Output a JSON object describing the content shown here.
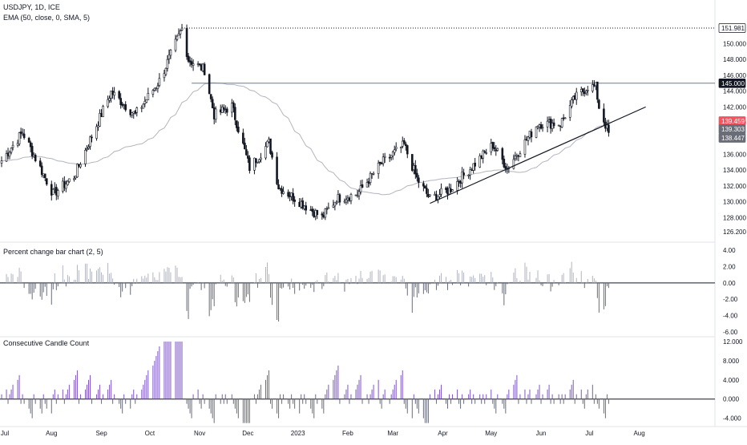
{
  "header": {
    "title": "USDJPY, 1D, ICE",
    "indicator": "EMA (50, close, 0, SMA, 5)"
  },
  "panels": {
    "pct": {
      "title": "Percent change bar chart (2, 5)"
    },
    "ccc": {
      "title": "Consecutive Candle Count"
    }
  },
  "colors": {
    "candle": "#131722",
    "ema": "#b2b5be",
    "hline": "#5b7fa5",
    "trendline": "#131722",
    "pct_up": "#b2b5be",
    "pct_down": "#6a6d78",
    "ccc_up": "#7e57c2",
    "ccc_down": "#6a6d78",
    "price_tag_red": "#f7525f",
    "price_tag_grey": "#6a6d78",
    "price_tag_navy": "#131722"
  },
  "chart_data": [
    {
      "type": "candlestick",
      "title": "USDJPY, 1D, ICE",
      "x_ticks": [
        "Jul",
        "Aug",
        "Sep",
        "Oct",
        "Nov",
        "Dec",
        "2023",
        "Feb",
        "Mar",
        "Apr",
        "May",
        "Jun",
        "Jul",
        "Aug"
      ],
      "y_ticks": [
        "126.200",
        "128.000",
        "130.000",
        "132.000",
        "134.000",
        "136.000",
        "140.000",
        "142.000",
        "144.000",
        "146.000",
        "148.000",
        "150.000"
      ],
      "ylim": [
        125.5,
        153.3
      ],
      "series": [
        {
          "name": "EMA (50, close, 0, SMA, 5)",
          "type": "line"
        }
      ],
      "key_points": [
        {
          "date": "2022-07-01",
          "close": 135.2
        },
        {
          "date": "2022-07-14",
          "close": 138.8
        },
        {
          "date": "2022-08-02",
          "close": 131.0
        },
        {
          "date": "2022-08-15",
          "close": 133.2
        },
        {
          "date": "2022-09-07",
          "close": 143.9
        },
        {
          "date": "2022-09-22",
          "close": 141.0
        },
        {
          "date": "2022-10-07",
          "close": 145.3
        },
        {
          "date": "2022-10-21",
          "close": 151.9
        },
        {
          "date": "2022-10-25",
          "close": 148.0
        },
        {
          "date": "2022-11-04",
          "close": 146.7
        },
        {
          "date": "2022-11-10",
          "close": 141.0
        },
        {
          "date": "2022-11-21",
          "close": 142.1
        },
        {
          "date": "2022-12-02",
          "close": 134.3
        },
        {
          "date": "2022-12-14",
          "close": 137.5
        },
        {
          "date": "2022-12-20",
          "close": 131.9
        },
        {
          "date": "2023-01-16",
          "close": 128.0
        },
        {
          "date": "2023-01-25",
          "close": 130.4
        },
        {
          "date": "2023-02-07",
          "close": 131.0
        },
        {
          "date": "2023-02-22",
          "close": 134.9
        },
        {
          "date": "2023-03-08",
          "close": 137.2
        },
        {
          "date": "2023-03-16",
          "close": 132.9
        },
        {
          "date": "2023-03-24",
          "close": 130.4
        },
        {
          "date": "2023-04-05",
          "close": 131.5
        },
        {
          "date": "2023-04-18",
          "close": 134.2
        },
        {
          "date": "2023-05-02",
          "close": 137.2
        },
        {
          "date": "2023-05-11",
          "close": 134.3
        },
        {
          "date": "2023-05-30",
          "close": 139.9
        },
        {
          "date": "2023-06-13",
          "close": 139.9
        },
        {
          "date": "2023-06-22",
          "close": 143.1
        },
        {
          "date": "2023-06-30",
          "close": 144.6
        },
        {
          "date": "2023-07-05",
          "close": 144.5
        },
        {
          "date": "2023-07-07",
          "close": 142.0
        },
        {
          "date": "2023-07-13",
          "close": 138.6
        }
      ],
      "horizontal_levels": [
        {
          "value": 151.981,
          "label": "151.981",
          "style": "dotted"
        },
        {
          "value": 145.0,
          "label": "145.000",
          "style": "solid"
        }
      ],
      "trendline": [
        {
          "date": "2023-03-24",
          "value": 129.8
        },
        {
          "date": "2023-08-05",
          "value": 142.0
        }
      ],
      "price_labels": [
        {
          "value": 151.981,
          "label": "151.981"
        },
        {
          "value": 145.0,
          "label": "145.000"
        },
        {
          "value": 139.459,
          "label": "139.459"
        },
        {
          "value": 139.303,
          "label": "139.303"
        },
        {
          "value": 138.447,
          "label": "138.447"
        }
      ]
    },
    {
      "type": "bar",
      "title": "Percent change bar chart (2, 5)",
      "y_ticks": [
        "4.00",
        "2.00",
        "0.00",
        "-2.00",
        "-4.00",
        "-6.00"
      ],
      "ylim": [
        -6.4,
        5.0
      ],
      "notes": "bars above zero light grey, below zero dark grey"
    },
    {
      "type": "bar",
      "title": "Consecutive Candle Count",
      "y_ticks": [
        "12.000",
        "8.000",
        "4.000",
        "0.000",
        "-4.000"
      ],
      "ylim": [
        -5.4,
        13.0
      ],
      "notes": "positive counts purple, negative counts grey"
    }
  ]
}
